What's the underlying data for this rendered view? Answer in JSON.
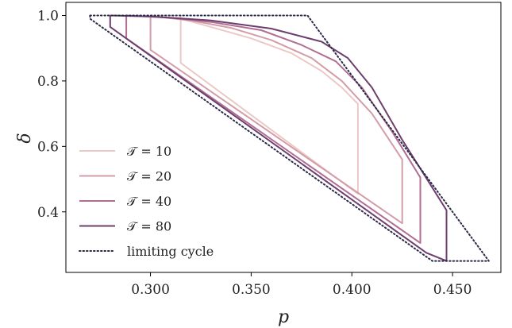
{
  "chart_data": {
    "type": "line",
    "xlabel": "p",
    "ylabel": "δ",
    "xlim": [
      0.258,
      0.474
    ],
    "ylim": [
      0.215,
      1.04
    ],
    "xticks": [
      "0.300",
      "0.350",
      "0.400",
      "0.450"
    ],
    "xtick_values": [
      0.3,
      0.35,
      0.4,
      0.45
    ],
    "yticks": [
      "0.4",
      "0.6",
      "0.8",
      "1.0"
    ],
    "ytick_values": [
      0.4,
      0.6,
      0.8,
      1.0
    ],
    "legend_position": "lower-left",
    "series": [
      {
        "name": "𝒯 = 10",
        "color": "#ebc9c5",
        "style": "solid",
        "points": [
          [
            0.315,
            1.0
          ],
          [
            0.315,
            0.855
          ],
          [
            0.403,
            0.455
          ],
          [
            0.403,
            0.73
          ],
          [
            0.395,
            0.78
          ],
          [
            0.385,
            0.83
          ],
          [
            0.37,
            0.885
          ],
          [
            0.35,
            0.93
          ],
          [
            0.33,
            0.965
          ],
          [
            0.315,
            0.99
          ]
        ]
      },
      {
        "name": "𝒯 = 20",
        "color": "#d39ca9",
        "style": "solid",
        "points": [
          [
            0.3,
            1.0
          ],
          [
            0.3,
            0.895
          ],
          [
            0.425,
            0.365
          ],
          [
            0.425,
            0.56
          ],
          [
            0.41,
            0.7
          ],
          [
            0.395,
            0.8
          ],
          [
            0.38,
            0.87
          ],
          [
            0.36,
            0.925
          ],
          [
            0.34,
            0.962
          ],
          [
            0.32,
            0.985
          ],
          [
            0.3,
            0.998
          ]
        ]
      },
      {
        "name": "𝒯 = 40",
        "color": "#b06e93",
        "style": "solid",
        "points": [
          [
            0.288,
            1.0
          ],
          [
            0.288,
            0.93
          ],
          [
            0.434,
            0.305
          ],
          [
            0.434,
            0.505
          ],
          [
            0.42,
            0.645
          ],
          [
            0.405,
            0.78
          ],
          [
            0.392,
            0.86
          ],
          [
            0.375,
            0.91
          ],
          [
            0.355,
            0.955
          ],
          [
            0.33,
            0.98
          ],
          [
            0.31,
            0.993
          ],
          [
            0.288,
            1.0
          ]
        ]
      },
      {
        "name": "𝒯 = 80",
        "color": "#6c3f6f",
        "style": "solid",
        "points": [
          [
            0.28,
            1.0
          ],
          [
            0.28,
            0.965
          ],
          [
            0.437,
            0.275
          ],
          [
            0.447,
            0.25
          ],
          [
            0.447,
            0.405
          ],
          [
            0.425,
            0.62
          ],
          [
            0.41,
            0.78
          ],
          [
            0.398,
            0.87
          ],
          [
            0.385,
            0.92
          ],
          [
            0.36,
            0.96
          ],
          [
            0.33,
            0.985
          ],
          [
            0.3,
            0.997
          ],
          [
            0.28,
            1.0
          ]
        ]
      },
      {
        "name": "limiting cycle",
        "color": "#2b2948",
        "style": "dotted",
        "points": [
          [
            0.27,
            1.0
          ],
          [
            0.378,
            1.0
          ],
          [
            0.468,
            0.25
          ],
          [
            0.44,
            0.25
          ],
          [
            0.27,
            0.99
          ],
          [
            0.27,
            1.0
          ]
        ]
      }
    ]
  }
}
